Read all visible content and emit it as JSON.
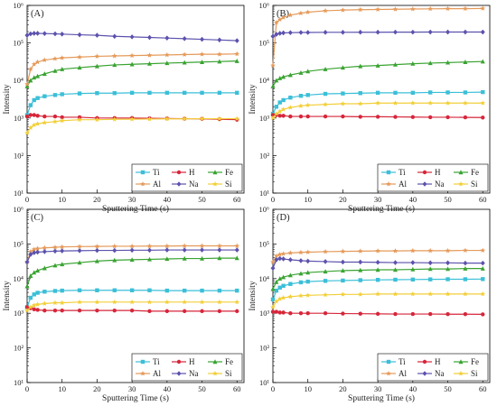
{
  "figure": {
    "background": "#ffffff"
  },
  "series_styles": [
    {
      "name": "Ti",
      "color": "#3bbfd8",
      "marker": "square"
    },
    {
      "name": "H",
      "color": "#d6263a",
      "marker": "circle"
    },
    {
      "name": "Fe",
      "color": "#3aa332",
      "marker": "triangle"
    },
    {
      "name": "Al",
      "color": "#e59a5a",
      "marker": "star"
    },
    {
      "name": "Na",
      "color": "#5c52ad",
      "marker": "diamond"
    },
    {
      "name": "Si",
      "color": "#f2cf3a",
      "marker": "star"
    }
  ],
  "chart_data": [
    {
      "type": "line",
      "panel_label": "(A)",
      "xlabel": "Sputtering Time (s)",
      "ylabel": "Intensity",
      "xlim": [
        0,
        62
      ],
      "ylim": [
        10,
        1000000
      ],
      "yscale": "log",
      "xticks": [
        0,
        10,
        20,
        30,
        40,
        50,
        60
      ],
      "yticks": [
        10,
        100,
        1000,
        10000,
        100000,
        1000000
      ],
      "ytick_labels": [
        "10¹",
        "10²",
        "10³",
        "10⁴",
        "10⁵",
        "10⁶"
      ],
      "legend_position": "bottom-right",
      "x": [
        0,
        1,
        2,
        3,
        5,
        8,
        10,
        15,
        20,
        25,
        30,
        35,
        40,
        45,
        50,
        55,
        60
      ],
      "series": [
        {
          "name": "Ti",
          "values": [
            1200,
            2200,
            3000,
            3400,
            3800,
            4100,
            4300,
            4500,
            4600,
            4600,
            4700,
            4700,
            4700,
            4700,
            4700,
            4700,
            4700
          ]
        },
        {
          "name": "H",
          "values": [
            1100,
            1200,
            1200,
            1150,
            1100,
            1100,
            1050,
            1050,
            1000,
            1000,
            1000,
            980,
            970,
            960,
            950,
            930,
            900
          ]
        },
        {
          "name": "Fe",
          "values": [
            7000,
            10000,
            12000,
            13000,
            15000,
            18000,
            20000,
            22000,
            24000,
            26000,
            27000,
            28000,
            29000,
            30000,
            31000,
            32000,
            33000
          ]
        },
        {
          "name": "Al",
          "values": [
            8000,
            20000,
            27000,
            31000,
            35000,
            38000,
            40000,
            42000,
            44000,
            45000,
            46000,
            47000,
            48000,
            49000,
            50000,
            50000,
            51000
          ]
        },
        {
          "name": "Na",
          "values": [
            160000,
            175000,
            180000,
            180000,
            178000,
            175000,
            172000,
            165000,
            160000,
            150000,
            145000,
            140000,
            135000,
            130000,
            125000,
            120000,
            115000
          ]
        },
        {
          "name": "Si",
          "values": [
            400,
            550,
            650,
            700,
            750,
            800,
            850,
            900,
            900,
            920,
            930,
            940,
            950,
            950,
            960,
            960,
            960
          ]
        }
      ]
    },
    {
      "type": "line",
      "panel_label": "(B)",
      "xlabel": "Sputtering Time (s)",
      "ylabel": "Intensity",
      "xlim": [
        0,
        62
      ],
      "ylim": [
        10,
        1000000
      ],
      "yscale": "log",
      "xticks": [
        0,
        10,
        20,
        30,
        40,
        50,
        60
      ],
      "yticks": [
        10,
        100,
        1000,
        10000,
        100000,
        1000000
      ],
      "ytick_labels": [
        "10¹",
        "10²",
        "10³",
        "10⁴",
        "10⁵",
        "10⁶"
      ],
      "legend_position": "bottom-right",
      "x": [
        0,
        1,
        2,
        3,
        5,
        8,
        10,
        15,
        20,
        25,
        30,
        35,
        40,
        45,
        50,
        55,
        60
      ],
      "series": [
        {
          "name": "Ti",
          "values": [
            1300,
            2000,
            2600,
            3000,
            3500,
            3900,
            4100,
            4400,
            4500,
            4600,
            4700,
            4700,
            4700,
            4800,
            4800,
            4800,
            4900
          ]
        },
        {
          "name": "H",
          "values": [
            1200,
            1200,
            1150,
            1150,
            1100,
            1100,
            1100,
            1100,
            1100,
            1080,
            1080,
            1070,
            1060,
            1050,
            1050,
            1040,
            1030
          ]
        },
        {
          "name": "Fe",
          "values": [
            7000,
            10000,
            11500,
            12500,
            14000,
            16000,
            17500,
            20000,
            22000,
            24000,
            25000,
            26500,
            28000,
            29000,
            30000,
            31000,
            32000
          ]
        },
        {
          "name": "Al",
          "values": [
            25000,
            350000,
            420000,
            480000,
            550000,
            620000,
            660000,
            720000,
            750000,
            770000,
            780000,
            790000,
            800000,
            810000,
            820000,
            820000,
            830000
          ]
        },
        {
          "name": "Na",
          "values": [
            150000,
            170000,
            180000,
            185000,
            188000,
            190000,
            190000,
            192000,
            192000,
            193000,
            193000,
            194000,
            194000,
            195000,
            195000,
            195000,
            195000
          ]
        },
        {
          "name": "Si",
          "values": [
            1000,
            1300,
            1500,
            1700,
            1900,
            2100,
            2200,
            2300,
            2400,
            2400,
            2500,
            2500,
            2500,
            2500,
            2500,
            2500,
            2500
          ]
        }
      ]
    },
    {
      "type": "line",
      "panel_label": "(C)",
      "xlabel": "Sputtering Time (s)",
      "ylabel": "Intensity",
      "xlim": [
        0,
        62
      ],
      "ylim": [
        10,
        1000000
      ],
      "yscale": "log",
      "xticks": [
        0,
        10,
        20,
        30,
        40,
        50,
        60
      ],
      "yticks": [
        10,
        100,
        1000,
        10000,
        100000,
        1000000
      ],
      "ytick_labels": [
        "10¹",
        "10²",
        "10³",
        "10⁴",
        "10⁵",
        "10⁶"
      ],
      "legend_position": "bottom-right",
      "x": [
        0,
        1,
        2,
        3,
        5,
        8,
        10,
        15,
        20,
        25,
        30,
        35,
        40,
        45,
        50,
        55,
        60
      ],
      "series": [
        {
          "name": "Ti",
          "values": [
            1500,
            2800,
            3500,
            3900,
            4200,
            4400,
            4500,
            4600,
            4600,
            4600,
            4600,
            4600,
            4500,
            4500,
            4500,
            4500,
            4500
          ]
        },
        {
          "name": "H",
          "values": [
            1500,
            1400,
            1300,
            1250,
            1200,
            1200,
            1200,
            1200,
            1200,
            1200,
            1200,
            1150,
            1150,
            1150,
            1150,
            1150,
            1150
          ]
        },
        {
          "name": "Fe",
          "values": [
            6000,
            12000,
            15000,
            17000,
            20000,
            24000,
            26000,
            29000,
            32000,
            34000,
            35000,
            36000,
            37000,
            38000,
            38000,
            39000,
            39000
          ]
        },
        {
          "name": "Al",
          "values": [
            30000,
            60000,
            70000,
            74000,
            77000,
            80000,
            82000,
            84000,
            85000,
            86000,
            86000,
            87000,
            87000,
            88000,
            88000,
            88000,
            88000
          ]
        },
        {
          "name": "Na",
          "values": [
            30000,
            50000,
            56000,
            58000,
            60000,
            62000,
            63000,
            64000,
            65000,
            65000,
            66000,
            66000,
            67000,
            67000,
            67000,
            67000,
            67000
          ]
        },
        {
          "name": "Si",
          "values": [
            1200,
            1500,
            1700,
            1800,
            1900,
            2000,
            2000,
            2100,
            2100,
            2100,
            2100,
            2100,
            2100,
            2100,
            2100,
            2100,
            2100
          ]
        }
      ]
    },
    {
      "type": "line",
      "panel_label": "(D)",
      "xlabel": "Sputtering Time (s)",
      "ylabel": "Intensity",
      "xlim": [
        0,
        62
      ],
      "ylim": [
        10,
        1000000
      ],
      "yscale": "log",
      "xticks": [
        0,
        10,
        20,
        30,
        40,
        50,
        60
      ],
      "yticks": [
        10,
        100,
        1000,
        10000,
        100000,
        1000000
      ],
      "ytick_labels": [
        "10¹",
        "10²",
        "10³",
        "10⁴",
        "10⁵",
        "10⁶"
      ],
      "legend_position": "bottom-right",
      "x": [
        0,
        1,
        2,
        3,
        5,
        8,
        10,
        15,
        20,
        25,
        30,
        35,
        40,
        45,
        50,
        55,
        60
      ],
      "series": [
        {
          "name": "Ti",
          "values": [
            2500,
            4500,
            5500,
            6200,
            7000,
            7800,
            8200,
            8600,
            8800,
            9000,
            9200,
            9300,
            9400,
            9500,
            9600,
            9600,
            9700
          ]
        },
        {
          "name": "H",
          "values": [
            1100,
            1100,
            1050,
            1050,
            1000,
            1000,
            1000,
            1000,
            980,
            970,
            960,
            950,
            950,
            950,
            940,
            940,
            930
          ]
        },
        {
          "name": "Fe",
          "values": [
            5000,
            8000,
            10000,
            11000,
            12500,
            14000,
            15000,
            16000,
            17000,
            17500,
            18000,
            18000,
            18500,
            19000,
            19000,
            19500,
            19500
          ]
        },
        {
          "name": "Al",
          "values": [
            30000,
            45000,
            50000,
            52000,
            55000,
            57000,
            58000,
            60000,
            61000,
            62000,
            63000,
            63000,
            64000,
            64000,
            64000,
            65000,
            65000
          ]
        },
        {
          "name": "Na",
          "values": [
            20000,
            35000,
            38000,
            37000,
            35000,
            33000,
            32000,
            31000,
            30000,
            30000,
            29500,
            29000,
            29000,
            28500,
            28500,
            28000,
            28000
          ]
        },
        {
          "name": "Si",
          "values": [
            1500,
            2200,
            2600,
            2800,
            3000,
            3200,
            3300,
            3400,
            3500,
            3500,
            3600,
            3600,
            3600,
            3600,
            3600,
            3600,
            3600
          ]
        }
      ]
    }
  ]
}
